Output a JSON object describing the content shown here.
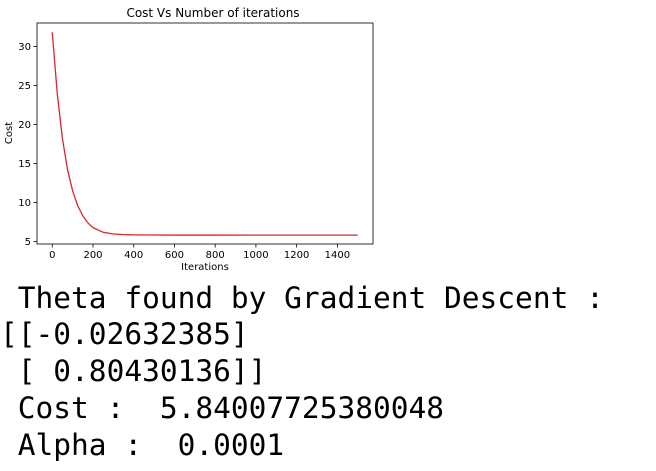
{
  "chart_data": {
    "type": "line",
    "title": "Cost Vs Number of iterations",
    "xlabel": "Iterations",
    "ylabel": "Cost",
    "xlim": [
      -75,
      1575
    ],
    "ylim": [
      4.7,
      33.0
    ],
    "xticks": [
      0,
      200,
      400,
      600,
      800,
      1000,
      1200,
      1400
    ],
    "yticks": [
      5,
      10,
      15,
      20,
      25,
      30
    ],
    "grid": false,
    "series": [
      {
        "color": "#d62728",
        "x": [
          0,
          25,
          50,
          75,
          100,
          125,
          150,
          175,
          200,
          250,
          300,
          350,
          400,
          500,
          600,
          800,
          1000,
          1200,
          1400,
          1500
        ],
        "y": [
          31.8,
          23.8,
          18.2,
          14.2,
          11.5,
          9.6,
          8.3,
          7.4,
          6.8,
          6.2,
          5.98,
          5.9,
          5.87,
          5.85,
          5.845,
          5.842,
          5.841,
          5.8405,
          5.8401,
          5.84
        ]
      }
    ]
  },
  "output": {
    "line1": " Theta found by Gradient Descent :",
    "line2": "[[-0.02632385]",
    "line3": " [ 0.80430136]]",
    "line4": " Cost :  5.84007725380048",
    "line5": " Alpha :  0.0001"
  }
}
